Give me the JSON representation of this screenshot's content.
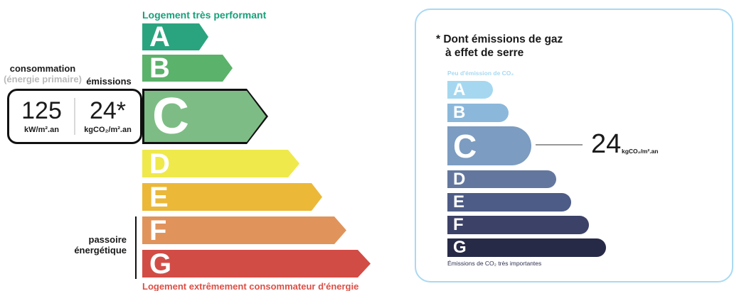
{
  "left_chart": {
    "top_label": "Logement très performant",
    "bottom_label": "Logement extrêmement consommateur d'énergie",
    "consumption_label": "consommation",
    "consumption_sublabel": "(énergie primaire)",
    "emissions_label": "émissions",
    "value_box": {
      "consumption_value": "125",
      "consumption_unit": "kW/m².an",
      "emissions_value": "24*",
      "emissions_unit": "kgCO₂/m².an"
    },
    "sieve_label_line1": "passoire",
    "sieve_label_line2": "énergétique",
    "selected_class": "C",
    "classes": [
      {
        "label": "A",
        "color": "#2aa47e"
      },
      {
        "label": "B",
        "color": "#5bb26a"
      },
      {
        "label": "C",
        "color": "#7dbd85"
      },
      {
        "label": "D",
        "color": "#efe94b"
      },
      {
        "label": "E",
        "color": "#ebb838"
      },
      {
        "label": "F",
        "color": "#e0945c"
      },
      {
        "label": "G",
        "color": "#d24c46"
      }
    ]
  },
  "right_panel": {
    "title_line1": "* Dont émissions de gaz",
    "title_line2": "à effet de serre",
    "scale_top_label": "Peu d'émission de CO₂",
    "scale_bottom_label": "Émissions de CO₂ très importantes",
    "value": "24",
    "value_unit": "kgCO₂/m².an",
    "selected_class": "C",
    "classes": [
      {
        "label": "A",
        "color": "#a5d8f0"
      },
      {
        "label": "B",
        "color": "#8bb8da"
      },
      {
        "label": "C",
        "color": "#7c9cc1"
      },
      {
        "label": "D",
        "color": "#63779e"
      },
      {
        "label": "E",
        "color": "#4d5c86"
      },
      {
        "label": "F",
        "color": "#3c4168"
      },
      {
        "label": "G",
        "color": "#272a47"
      }
    ]
  },
  "chart_data": [
    {
      "type": "bar",
      "title": "DPE — classe énergie (consommation / émissions)",
      "categories": [
        "A",
        "B",
        "C",
        "D",
        "E",
        "F",
        "G"
      ],
      "values": [
        93,
        127,
        177,
        221,
        253,
        287,
        321
      ],
      "values_note": "relative arrow lengths in px, increasing from A to G",
      "colors": [
        "#2aa47e",
        "#5bb26a",
        "#7dbd85",
        "#efe94b",
        "#ebb838",
        "#e0945c",
        "#d24c46"
      ],
      "selected_class": "C",
      "consumption_value": 125,
      "consumption_unit": "kW/m².an",
      "emissions_value": 24,
      "emissions_unit": "kgCO₂/m².an",
      "annotations": [
        "Logement très performant",
        "Logement extrêmement consommateur d'énergie",
        "passoire énergétique (F–G)"
      ]
    },
    {
      "type": "bar",
      "title": "Dont émissions de gaz à effet de serre (GES)",
      "categories": [
        "A",
        "B",
        "C",
        "D",
        "E",
        "F",
        "G"
      ],
      "values": [
        64,
        86,
        118,
        153,
        174,
        199,
        223
      ],
      "values_note": "relative bar lengths in px, increasing from A to G",
      "colors": [
        "#a5d8f0",
        "#8bb8da",
        "#7c9cc1",
        "#63779e",
        "#4d5c86",
        "#3c4168",
        "#272a47"
      ],
      "selected_class": "C",
      "value": 24,
      "unit": "kgCO₂/m².an",
      "annotations": [
        "Peu d'émission de CO₂",
        "Émissions de CO₂ très importantes"
      ]
    }
  ]
}
